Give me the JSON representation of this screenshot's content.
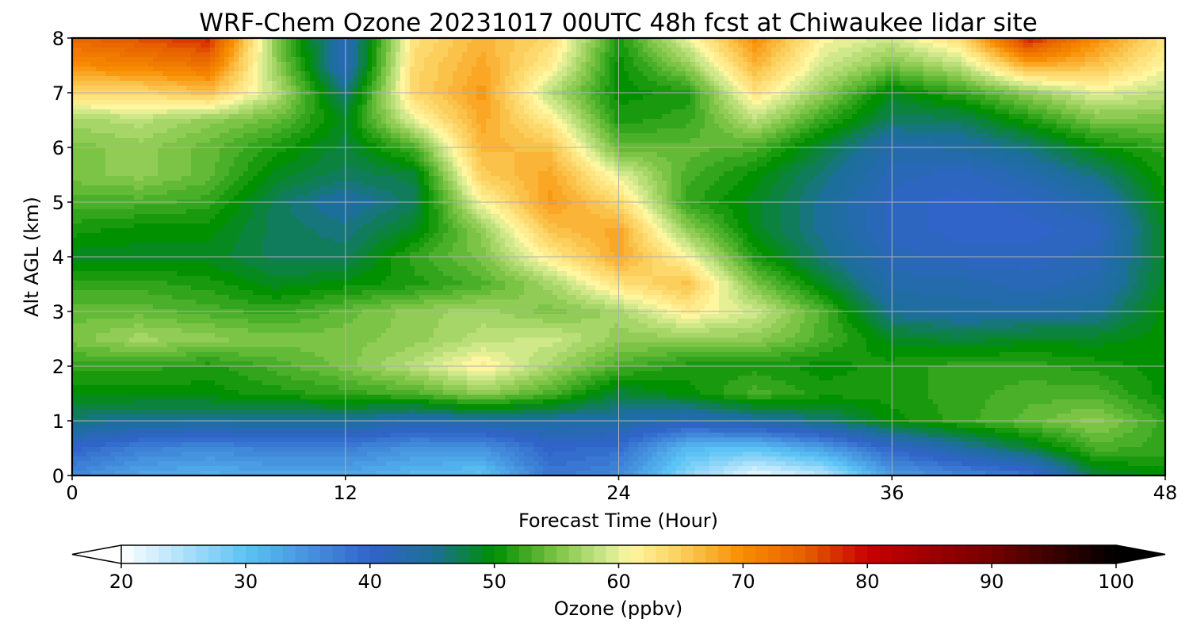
{
  "chart_data": {
    "type": "heatmap",
    "title": "WRF-Chem Ozone  20231017 00UTC 48h fcst at Chiwaukee lidar site",
    "xlabel": "Forecast Time (Hour)",
    "ylabel": "Alt AGL (km)",
    "xlim": [
      0,
      48
    ],
    "ylim": [
      0,
      8
    ],
    "x_ticks": [
      0,
      12,
      24,
      36,
      48
    ],
    "y_ticks": [
      0,
      1,
      2,
      3,
      4,
      5,
      6,
      7,
      8
    ],
    "grid": true,
    "x": [
      0,
      3,
      6,
      9,
      12,
      15,
      18,
      21,
      24,
      27,
      30,
      33,
      36,
      39,
      42,
      45,
      48
    ],
    "y": [
      0,
      0.5,
      1,
      1.5,
      2,
      2.5,
      3,
      3.5,
      4,
      4.5,
      5,
      5.5,
      6,
      6.5,
      7,
      7.5,
      8
    ],
    "z": [
      [
        36,
        33,
        32,
        33,
        33,
        31,
        30,
        38,
        36,
        27,
        21,
        24,
        34,
        36,
        38,
        48,
        50
      ],
      [
        40,
        37,
        36,
        37,
        37,
        35,
        35,
        40,
        39,
        31,
        30,
        34,
        40,
        44,
        48,
        53,
        52
      ],
      [
        46,
        45,
        45,
        45,
        45,
        43,
        44,
        44,
        44,
        42,
        44,
        46,
        50,
        52,
        54,
        56,
        52
      ],
      [
        50,
        50,
        50,
        51,
        52,
        53,
        56,
        53,
        48,
        50,
        53,
        51,
        51,
        52,
        53,
        53,
        50
      ],
      [
        52,
        52,
        51,
        53,
        55,
        58,
        62,
        57,
        53,
        51,
        51,
        50,
        51,
        52,
        52,
        51,
        50
      ],
      [
        55,
        57,
        56,
        55,
        55,
        56,
        58,
        59,
        56,
        56,
        56,
        53,
        49,
        48,
        49,
        49,
        50
      ],
      [
        54,
        54,
        53,
        52,
        54,
        56,
        57,
        55,
        57,
        62,
        59,
        53,
        45,
        44,
        44,
        45,
        50
      ],
      [
        52,
        52,
        51,
        49,
        50,
        51,
        53,
        57,
        63,
        66,
        55,
        49,
        43,
        43,
        42,
        43,
        49
      ],
      [
        49,
        49,
        49,
        47,
        47,
        52,
        55,
        62,
        68,
        61,
        51,
        46,
        42,
        41,
        41,
        42,
        49
      ],
      [
        51,
        50,
        50,
        47,
        46,
        49,
        56,
        66,
        68,
        56,
        49,
        45,
        41,
        40,
        40,
        41,
        49
      ],
      [
        53,
        53,
        52,
        47,
        44,
        47,
        61,
        69,
        64,
        52,
        49,
        45,
        41,
        40,
        41,
        43,
        50
      ],
      [
        55,
        56,
        54,
        49,
        47,
        48,
        65,
        68,
        60,
        53,
        50,
        46,
        42,
        41,
        43,
        46,
        51
      ],
      [
        55,
        56,
        54,
        51,
        48,
        53,
        67,
        66,
        54,
        54,
        53,
        48,
        43,
        44,
        46,
        50,
        52
      ],
      [
        57,
        58,
        56,
        54,
        49,
        60,
        68,
        62,
        51,
        52,
        58,
        52,
        47,
        47,
        51,
        55,
        55
      ],
      [
        64,
        64,
        66,
        58,
        46,
        64,
        69,
        58,
        50,
        51,
        63,
        56,
        49,
        52,
        56,
        60,
        58
      ],
      [
        70,
        71,
        73,
        56,
        42,
        64,
        68,
        62,
        50,
        56,
        67,
        59,
        55,
        58,
        68,
        66,
        61
      ],
      [
        74,
        76,
        78,
        55,
        42,
        63,
        67,
        64,
        51,
        60,
        70,
        61,
        59,
        64,
        79,
        70,
        63
      ]
    ],
    "colorbar": {
      "label": "Ozone  (ppbv)",
      "min": 20,
      "max": 100,
      "ticks": [
        20,
        30,
        40,
        50,
        60,
        70,
        80,
        90,
        100
      ],
      "extend": "both",
      "stops": [
        {
          "v": 20,
          "c": "#ffffff"
        },
        {
          "v": 30,
          "c": "#5bc3f5"
        },
        {
          "v": 40,
          "c": "#3064c9"
        },
        {
          "v": 45,
          "c": "#1c6f9a"
        },
        {
          "v": 50,
          "c": "#009000"
        },
        {
          "v": 55,
          "c": "#7cc445"
        },
        {
          "v": 59,
          "c": "#cfe88a"
        },
        {
          "v": 61,
          "c": "#fff6a0"
        },
        {
          "v": 65,
          "c": "#fccf5c"
        },
        {
          "v": 70,
          "c": "#f88c00"
        },
        {
          "v": 75,
          "c": "#e65f00"
        },
        {
          "v": 80,
          "c": "#c80000"
        },
        {
          "v": 90,
          "c": "#740000"
        },
        {
          "v": 100,
          "c": "#000000"
        }
      ]
    }
  }
}
